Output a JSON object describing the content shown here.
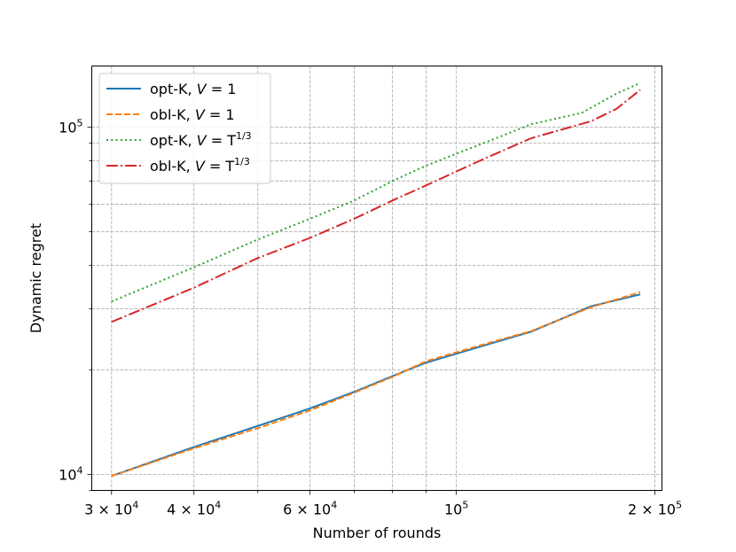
{
  "chart_data": {
    "type": "line",
    "title": "",
    "xlabel": "Number of rounds",
    "ylabel": "Dynamic regret",
    "xscale": "log",
    "yscale": "log",
    "xlim": [
      28000,
      205000
    ],
    "ylim": [
      9000,
      150000
    ],
    "grid": "both (major and minor), dashed",
    "legend_placement": "top-left",
    "x_tick_labels": [
      {
        "value": 30000,
        "base": "3 × 10",
        "exp": "4"
      },
      {
        "value": 40000,
        "base": "4 × 10",
        "exp": "4"
      },
      {
        "value": 60000,
        "base": "6 × 10",
        "exp": "4"
      },
      {
        "value": 100000,
        "base": "10",
        "exp": "5"
      },
      {
        "value": 200000,
        "base": "2 × 10",
        "exp": "5"
      }
    ],
    "y_tick_labels": [
      {
        "value": 10000,
        "base": "10",
        "exp": "4"
      },
      {
        "value": 100000,
        "base": "10",
        "exp": "5"
      }
    ],
    "series": [
      {
        "name_main": "opt-K, ",
        "name_var": "V",
        "name_eq": " = 1",
        "name_exp": "",
        "color": "#1f77b4",
        "dash": "",
        "x": [
          30000,
          40000,
          50000,
          60000,
          70000,
          80000,
          90000,
          110000,
          130000,
          160000,
          190000
        ],
        "y": [
          9900,
          12000,
          13800,
          15500,
          17300,
          19200,
          21000,
          23500,
          25800,
          30500,
          33000
        ]
      },
      {
        "name_main": "obl-K, ",
        "name_var": "V",
        "name_eq": " = 1",
        "name_exp": "",
        "color": "#ff7f0e",
        "dash": "7,3",
        "x": [
          30000,
          40000,
          50000,
          60000,
          70000,
          80000,
          90000,
          110000,
          130000,
          160000,
          190000
        ],
        "y": [
          9900,
          11900,
          13600,
          15300,
          17200,
          19100,
          21200,
          23700,
          25900,
          30300,
          33500
        ]
      },
      {
        "name_main": "opt-K, ",
        "name_var": "V",
        "name_eq": " = T",
        "name_exp": "1/3",
        "color": "#2ca02c",
        "dash": "2,3.3",
        "x": [
          30000,
          40000,
          50000,
          60000,
          70000,
          80000,
          90000,
          110000,
          130000,
          155000,
          175000,
          190000
        ],
        "y": [
          31500,
          39500,
          47500,
          54500,
          61500,
          70000,
          77500,
          90000,
          102000,
          110000,
          125000,
          134000
        ]
      },
      {
        "name_main": "obl-K, ",
        "name_var": "V",
        "name_eq": " = T",
        "name_exp": "1/3",
        "color": "#d62728",
        "dash": "12.8,3.2,2,3.2",
        "x": [
          30000,
          40000,
          50000,
          60000,
          70000,
          80000,
          90000,
          110000,
          130000,
          160000,
          175000,
          190000
        ],
        "y": [
          27500,
          34500,
          42000,
          48000,
          54500,
          61500,
          68000,
          81000,
          93000,
          104000,
          113000,
          128000
        ]
      }
    ]
  }
}
